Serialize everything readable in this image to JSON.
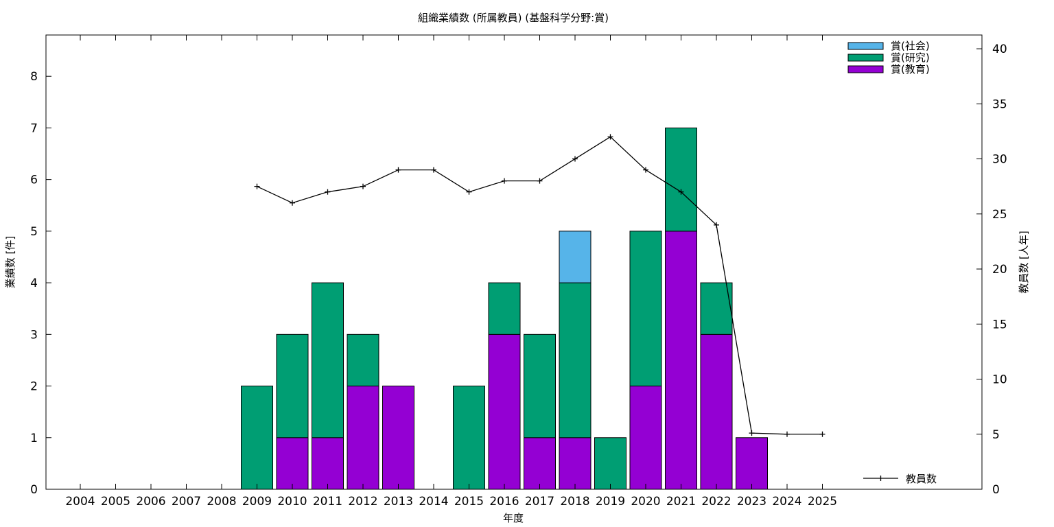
{
  "chart_data": {
    "type": "bar",
    "stacked": true,
    "title": "組織業績数 (所属教員) (基盤科学分野:賞)",
    "xlabel": "年度",
    "ylabel": "業績数 [件]",
    "y2label": "教員数 [人年]",
    "categories": [
      "2004",
      "2005",
      "2006",
      "2007",
      "2008",
      "2009",
      "2010",
      "2011",
      "2012",
      "2013",
      "2014",
      "2015",
      "2016",
      "2017",
      "2018",
      "2019",
      "2020",
      "2021",
      "2022",
      "2023",
      "2024",
      "2025"
    ],
    "ylim": [
      0,
      8.8
    ],
    "yticks": [
      0,
      1,
      2,
      3,
      4,
      5,
      6,
      7,
      8
    ],
    "y2lim": [
      0,
      41.25
    ],
    "y2ticks": [
      0,
      5,
      10,
      15,
      20,
      25,
      30,
      35,
      40
    ],
    "grid": false,
    "legend_position": "top-right",
    "series": [
      {
        "name": "賞(教育)",
        "color": "#9400d3",
        "values": [
          0,
          0,
          0,
          0,
          0,
          0,
          1,
          1,
          2,
          2,
          0,
          0,
          3,
          1,
          1,
          0,
          2,
          5,
          3,
          1,
          0,
          0
        ]
      },
      {
        "name": "賞(研究)",
        "color": "#009e73",
        "values": [
          0,
          0,
          0,
          0,
          0,
          2,
          2,
          3,
          1,
          0,
          0,
          2,
          1,
          2,
          3,
          1,
          3,
          2,
          1,
          0,
          0,
          0
        ]
      },
      {
        "name": "賞(社会)",
        "color": "#56b4e9",
        "values": [
          0,
          0,
          0,
          0,
          0,
          0,
          0,
          0,
          0,
          0,
          0,
          0,
          0,
          0,
          1,
          0,
          0,
          0,
          0,
          0,
          0,
          0
        ]
      }
    ],
    "line_series": {
      "name": "教員数",
      "color": "#000000",
      "axis": "y2",
      "x": [
        "2009",
        "2010",
        "2011",
        "2012",
        "2013",
        "2014",
        "2015",
        "2016",
        "2017",
        "2018",
        "2019",
        "2020",
        "2021",
        "2022",
        "2023",
        "2024",
        "2025"
      ],
      "values": [
        27.5,
        26,
        27,
        27.5,
        29,
        29,
        27,
        28,
        28,
        30,
        32,
        29,
        27,
        24,
        5.1,
        5,
        5
      ]
    }
  }
}
